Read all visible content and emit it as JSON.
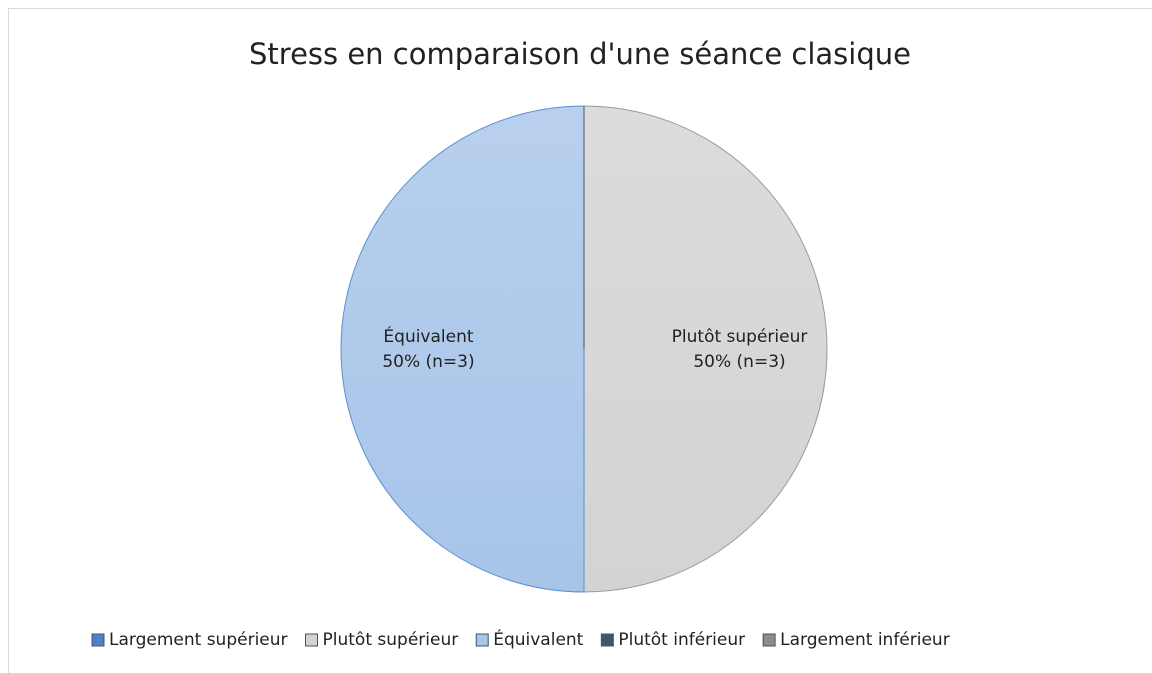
{
  "chart_data": {
    "type": "pie",
    "title": "Stress en comparaison d'une séance clasique",
    "categories": [
      "Largement supérieur",
      "Plutôt supérieur",
      "Équivalent",
      "Plutôt inférieur",
      "Largement inférieur"
    ],
    "values": [
      0,
      50,
      50,
      0,
      0
    ],
    "value_labels": [
      null,
      "50% (n=3)",
      "50% (n=3)",
      null,
      null
    ],
    "colors": [
      "#4f81c9",
      "#d3d3d3",
      "#a7c4e9",
      "#44546a",
      "#8c8c8c"
    ],
    "legend": "bottom"
  }
}
